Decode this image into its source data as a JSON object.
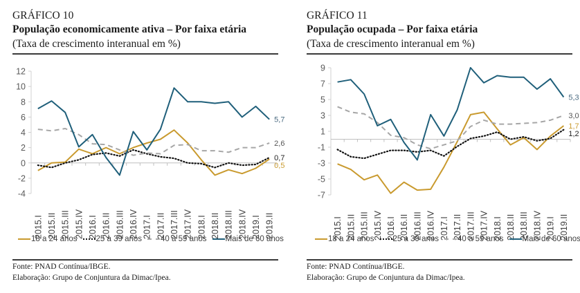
{
  "figures": [
    {
      "number": "GRÁFICO 10",
      "title": "População economicamente ativa – Por faixa etária",
      "subtitle": "(Taxa de crescimento interanual em %)",
      "source": "Fonte: PNAD Contínua/IBGE.",
      "elaboration": "Elaboração: Grupo de Conjuntura da Dimac/Ipea."
    },
    {
      "number": "GRÁFICO 11",
      "title": "População ocupada – Por faixa etária",
      "subtitle": "(Taxa de crescimento interanual em %)",
      "source": "Fonte: PNAD Contínua/IBGE.",
      "elaboration": "Elaboração: Grupo de Conjuntura da Dimac/Ipea."
    }
  ],
  "legend": [
    {
      "label": "18 a 24 anos",
      "style": "solid",
      "color": "#c99a2e"
    },
    {
      "label": "25 a 39 anos",
      "style": "dotted",
      "color": "#111111"
    },
    {
      "label": "40 a 59 anos",
      "style": "dashed",
      "color": "#a6a6a6"
    },
    {
      "label": "Mais de 60 anos",
      "style": "solid",
      "color": "#1f5f7a"
    }
  ],
  "chart_data": [
    {
      "type": "line",
      "title": "População economicamente ativa – Por faixa etária",
      "subtitle": "(Taxa de crescimento interanual em %)",
      "xlabel": "",
      "ylabel": "",
      "ylim": [
        -4,
        12
      ],
      "yticks": [
        -4,
        -2,
        0,
        2,
        4,
        6,
        8,
        10,
        12
      ],
      "grid": false,
      "legend_position": "bottom",
      "categories": [
        "2015.I",
        "2015.II",
        "2015.III",
        "2015.IV",
        "2016.I",
        "2016.II",
        "2016.III",
        "2016.IV",
        "2017.I",
        "2017.II",
        "2017.III",
        "2017.IV",
        "2018.I",
        "2018.II",
        "2018.III",
        "2018.IV",
        "2019.I",
        "2019.II"
      ],
      "series": [
        {
          "name": "18 a 24 anos",
          "color": "#c99a2e",
          "style": "solid",
          "end_label": "0,5",
          "values": [
            -1.0,
            0.0,
            0.1,
            1.8,
            1.2,
            2.0,
            1.2,
            2.0,
            2.6,
            3.1,
            4.3,
            2.6,
            0.4,
            -1.6,
            -0.9,
            -1.4,
            -0.7,
            0.5
          ]
        },
        {
          "name": "25 a 39 anos",
          "color": "#111111",
          "style": "dotted",
          "end_label": "0,7",
          "values": [
            -0.3,
            -0.6,
            0.0,
            0.4,
            1.1,
            1.3,
            0.9,
            1.7,
            1.2,
            0.8,
            0.6,
            0.0,
            -0.1,
            -0.6,
            0.0,
            -0.3,
            -0.2,
            0.7
          ]
        },
        {
          "name": "40 a 59 anos",
          "color": "#a6a6a6",
          "style": "dashed",
          "end_label": "2,6",
          "values": [
            4.4,
            4.2,
            4.5,
            3.7,
            2.5,
            2.4,
            1.7,
            1.0,
            1.3,
            1.2,
            2.3,
            2.4,
            1.6,
            1.6,
            1.4,
            2.0,
            2.0,
            2.6
          ]
        },
        {
          "name": "Mais de 60 anos",
          "color": "#1f5f7a",
          "style": "solid",
          "end_label": "5,7",
          "values": [
            7.1,
            8.1,
            6.6,
            2.1,
            3.7,
            0.7,
            -1.6,
            4.1,
            1.7,
            4.4,
            9.8,
            8.0,
            8.0,
            7.8,
            8.0,
            6.0,
            7.4,
            5.7
          ]
        }
      ]
    },
    {
      "type": "line",
      "title": "População ocupada – Por faixa etária",
      "subtitle": "(Taxa de crescimento interanual em %)",
      "xlabel": "",
      "ylabel": "",
      "ylim": [
        -7,
        9
      ],
      "yticks": [
        -7,
        -5,
        -3,
        -1,
        1,
        3,
        5,
        7,
        9
      ],
      "grid": false,
      "legend_position": "bottom",
      "categories": [
        "2015.I",
        "2015.II",
        "2015.III",
        "2015.IV",
        "2016.I",
        "2016.II",
        "2016.III",
        "2016.IV",
        "2017.I",
        "2017.II",
        "2017.III",
        "2017.IV",
        "2018.I",
        "2018.II",
        "2018.III",
        "2018.IV",
        "2019.I",
        "2019.II"
      ],
      "series": [
        {
          "name": "18 a 24 anos",
          "color": "#c99a2e",
          "style": "solid",
          "end_label": "1,7",
          "values": [
            -3.1,
            -3.8,
            -5.1,
            -4.5,
            -6.8,
            -5.4,
            -6.4,
            -6.3,
            -3.5,
            -0.3,
            3.1,
            3.4,
            1.3,
            -0.7,
            0.2,
            -1.3,
            0.4,
            1.7
          ]
        },
        {
          "name": "25 a 39 anos",
          "color": "#111111",
          "style": "dotted",
          "end_label": "1,2",
          "values": [
            -1.3,
            -2.2,
            -2.4,
            -1.9,
            -1.4,
            -1.4,
            -1.6,
            -1.4,
            -2.1,
            -0.9,
            0.1,
            0.4,
            0.9,
            0.0,
            0.3,
            -0.2,
            0.1,
            1.2
          ]
        },
        {
          "name": "40 a 59 anos",
          "color": "#a6a6a6",
          "style": "dashed",
          "end_label": "3,0",
          "values": [
            4.1,
            3.4,
            3.2,
            2.1,
            0.5,
            0.2,
            -0.7,
            -1.2,
            -0.7,
            -0.2,
            1.6,
            2.4,
            1.9,
            1.9,
            2.0,
            2.1,
            2.4,
            3.0
          ]
        },
        {
          "name": "Mais de 60 anos",
          "color": "#1f5f7a",
          "style": "solid",
          "end_label": "5,3",
          "values": [
            7.2,
            7.5,
            5.7,
            1.7,
            2.5,
            -0.4,
            -2.6,
            3.1,
            0.4,
            3.7,
            9.0,
            7.1,
            8.0,
            7.8,
            7.8,
            6.3,
            7.6,
            5.3
          ]
        }
      ]
    }
  ]
}
